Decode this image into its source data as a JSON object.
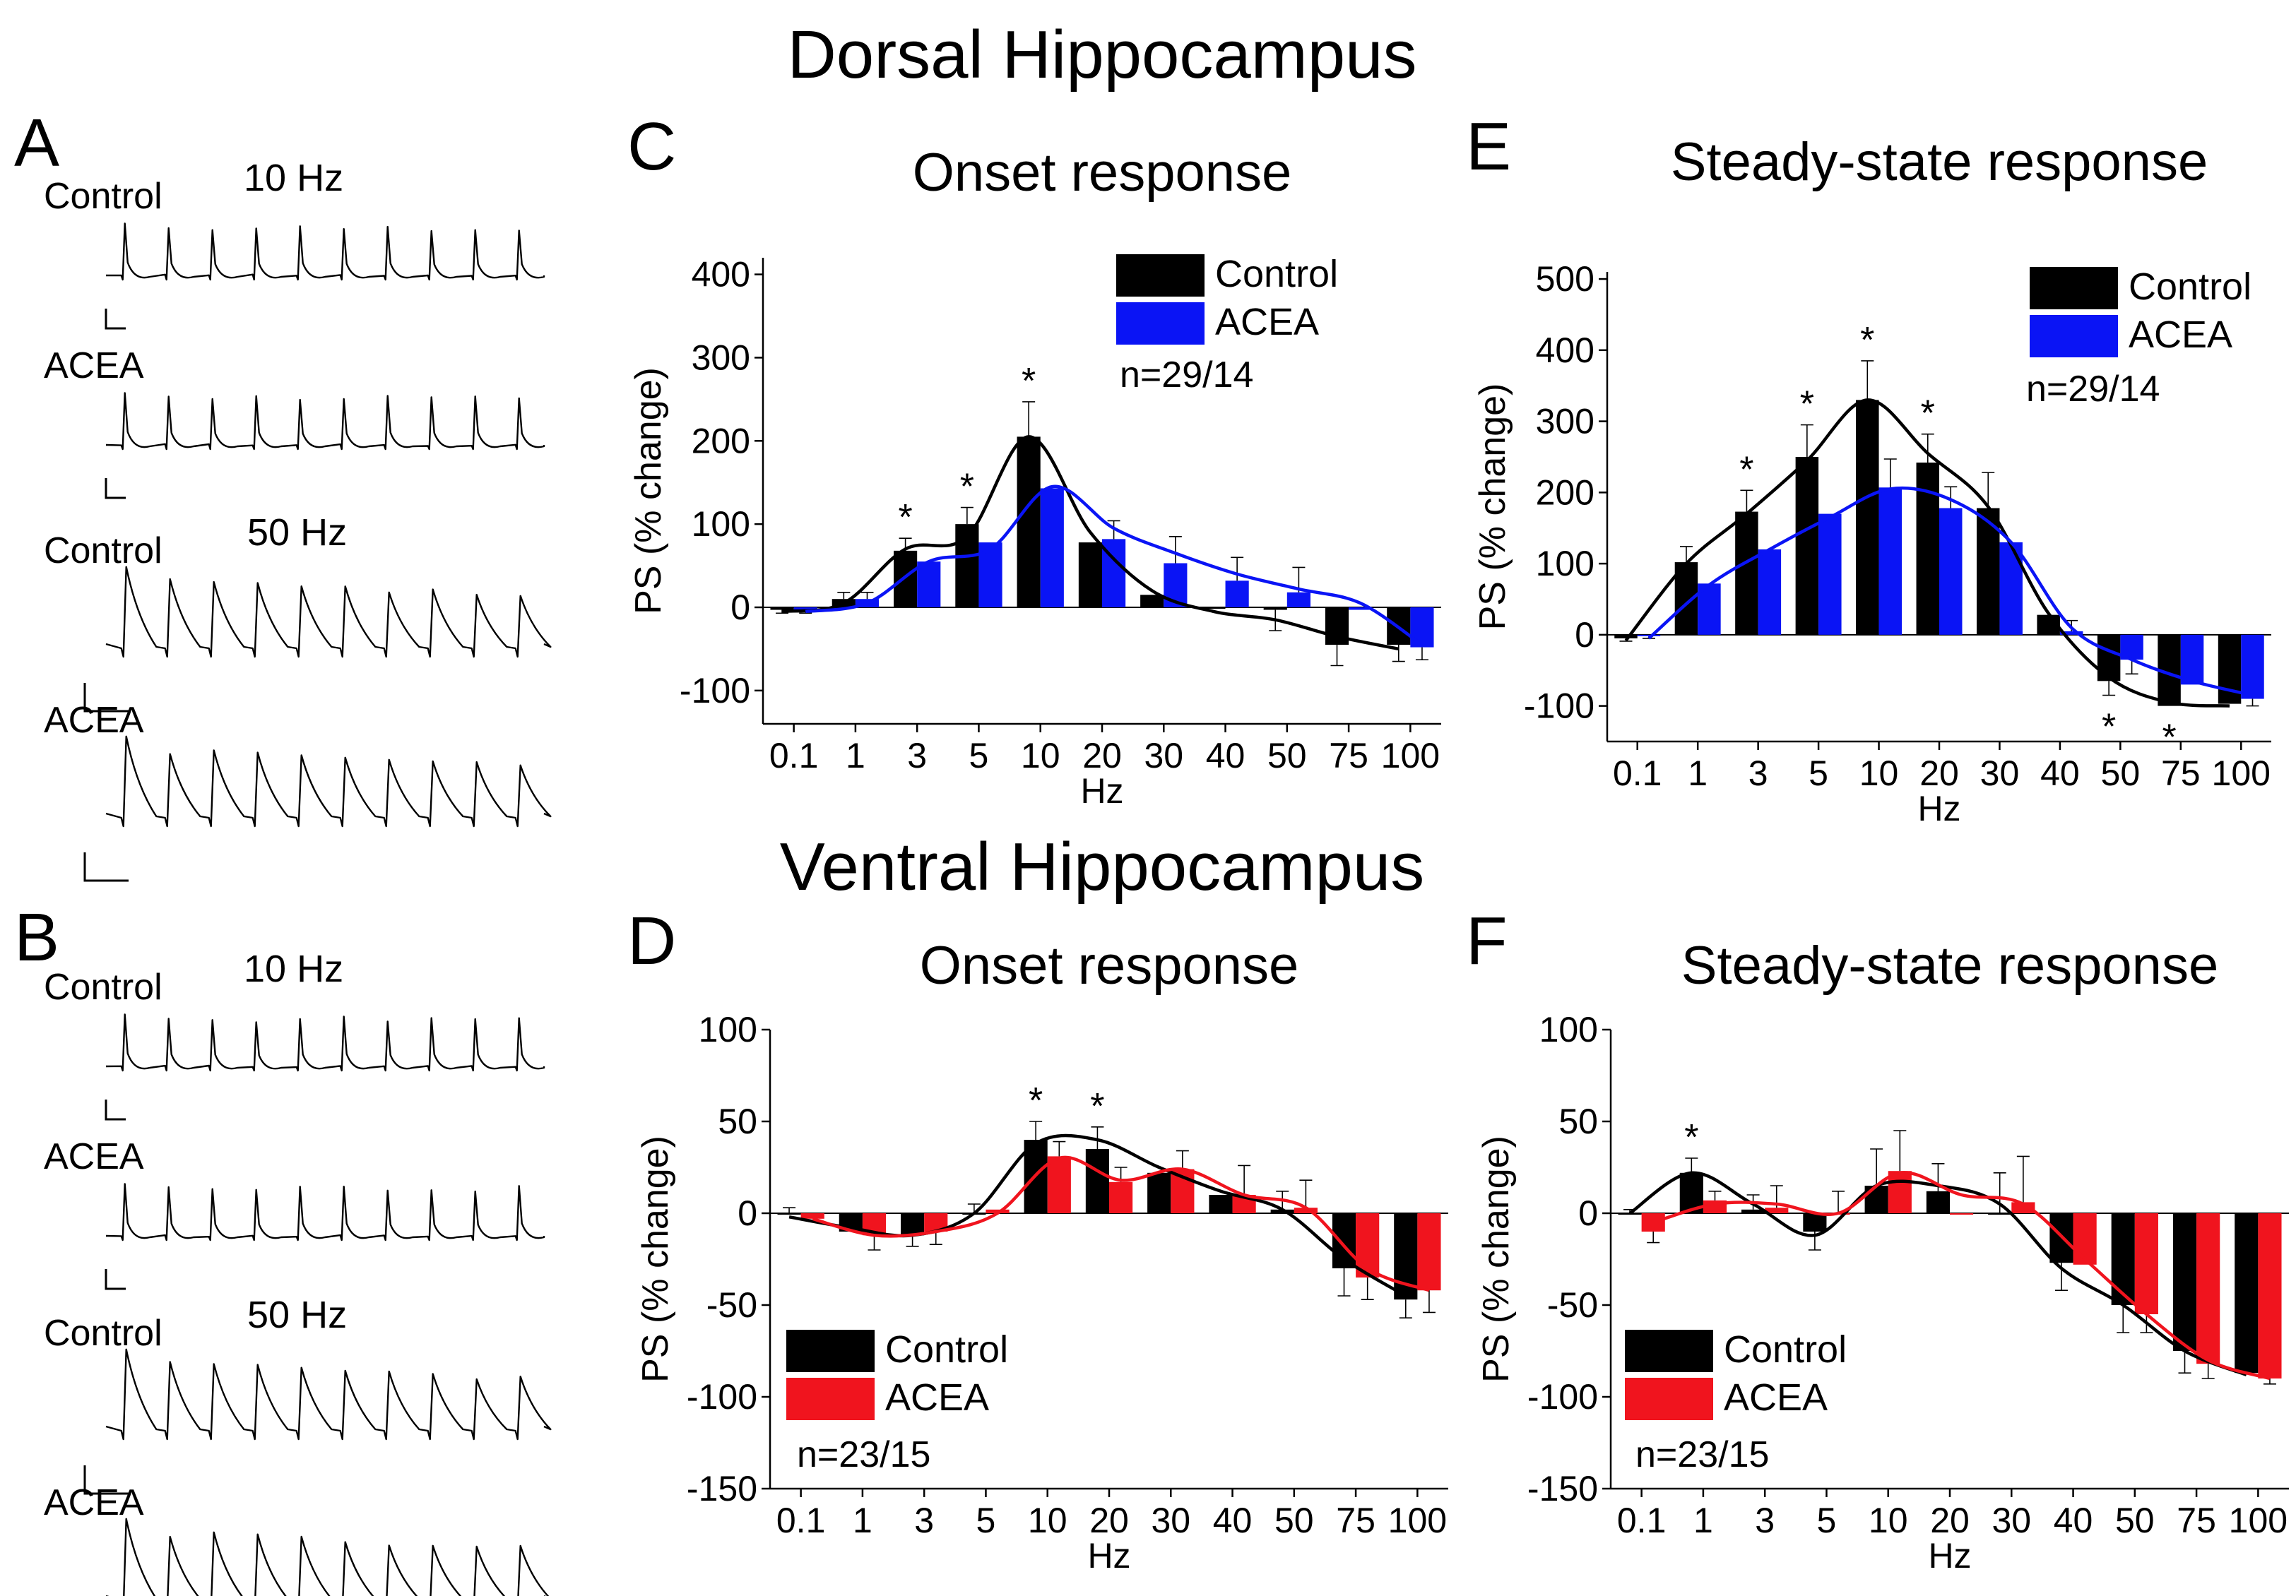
{
  "titles": {
    "dorsal": "Dorsal Hippocampus",
    "ventral": "Ventral Hippocampus"
  },
  "traces": {
    "A": {
      "letter": "A",
      "groups": [
        {
          "freq": "10 Hz",
          "rows": [
            {
              "label": "Control",
              "rate": 10,
              "kind": "sharp"
            },
            {
              "label": "ACEA",
              "rate": 10,
              "kind": "sharp"
            }
          ]
        },
        {
          "freq": "50 Hz",
          "rows": [
            {
              "label": "Control",
              "rate": 50,
              "kind": "decay"
            },
            {
              "label": "ACEA",
              "rate": 50,
              "kind": "decay"
            }
          ]
        }
      ]
    },
    "B": {
      "letter": "B",
      "groups": [
        {
          "freq": "10 Hz",
          "rows": [
            {
              "label": "Control",
              "rate": 10,
              "kind": "sharp"
            },
            {
              "label": "ACEA",
              "rate": 10,
              "kind": "sharp"
            }
          ]
        },
        {
          "freq": "50 Hz",
          "rows": [
            {
              "label": "Control",
              "rate": 50,
              "kind": "decay"
            },
            {
              "label": "ACEA",
              "rate": 50,
              "kind": "decay"
            }
          ]
        }
      ]
    }
  },
  "colors": {
    "control": "#000000",
    "acea_dorsal": "#0a14f5",
    "acea_ventral": "#f0141e"
  },
  "chart_data": [
    {
      "panel": "C",
      "type": "bar",
      "title": "Onset response",
      "xlabel": "Hz",
      "ylabel": "PS (% change)",
      "ylim": [
        -140,
        420
      ],
      "yticks": [
        -100,
        0,
        100,
        200,
        300,
        400
      ],
      "categories": [
        "0.1",
        "1",
        "3",
        "5",
        "10",
        "20",
        "30",
        "40",
        "50",
        "75",
        "100"
      ],
      "series": [
        {
          "name": "Control",
          "values": [
            -3,
            10,
            68,
            100,
            205,
            78,
            15,
            0,
            -3,
            -45,
            -45
          ],
          "errors": [
            4,
            8,
            15,
            20,
            42,
            0,
            0,
            0,
            25,
            25,
            20
          ]
        },
        {
          "name": "ACEA",
          "values": [
            -3,
            10,
            55,
            78,
            143,
            82,
            53,
            32,
            18,
            -3,
            -48
          ],
          "errors": [
            4,
            8,
            0,
            0,
            0,
            22,
            32,
            28,
            30,
            0,
            15
          ]
        }
      ],
      "fit_control": [
        -5,
        5,
        70,
        85,
        205,
        90,
        20,
        -5,
        -15,
        -35,
        -50
      ],
      "fit_acea": [
        -5,
        5,
        55,
        70,
        145,
        95,
        65,
        40,
        22,
        5,
        -45
      ],
      "significance": [
        "",
        "",
        "*",
        "*",
        "*",
        "",
        "",
        "",
        "",
        "",
        ""
      ],
      "legend": [
        "Control",
        "ACEA"
      ],
      "annotation": "n=29/14"
    },
    {
      "panel": "E",
      "type": "bar",
      "title": "Steady-state response",
      "xlabel": "Hz",
      "ylabel": "PS (% change)",
      "ylim": [
        -150,
        510
      ],
      "yticks": [
        -100,
        0,
        100,
        200,
        300,
        400,
        500
      ],
      "categories": [
        "0.1",
        "1",
        "3",
        "5",
        "10",
        "20",
        "30",
        "40",
        "50",
        "75",
        "100"
      ],
      "series": [
        {
          "name": "Control",
          "values": [
            -5,
            102,
            173,
            250,
            330,
            242,
            178,
            28,
            -65,
            -100,
            -97
          ],
          "errors": [
            4,
            22,
            30,
            45,
            55,
            40,
            50,
            0,
            20,
            0,
            0
          ]
        },
        {
          "name": "ACEA",
          "values": [
            -2,
            72,
            120,
            170,
            207,
            178,
            130,
            5,
            -35,
            -70,
            -90
          ],
          "errors": [
            3,
            0,
            0,
            0,
            40,
            30,
            0,
            15,
            20,
            0,
            10
          ]
        }
      ],
      "fit_control": [
        -8,
        100,
        170,
        245,
        330,
        255,
        180,
        30,
        -60,
        -95,
        -100
      ],
      "fit_acea": [
        -5,
        70,
        120,
        165,
        205,
        190,
        130,
        10,
        -35,
        -65,
        -85
      ],
      "significance": [
        "",
        "",
        "*",
        "*",
        "*",
        "*",
        "",
        "",
        "*",
        "*",
        ""
      ],
      "sig_below": [
        false,
        false,
        false,
        false,
        false,
        false,
        false,
        false,
        true,
        true,
        false
      ],
      "legend": [
        "Control",
        "ACEA"
      ],
      "annotation": "n=29/14"
    },
    {
      "panel": "D",
      "type": "bar",
      "title": "Onset response",
      "xlabel": "Hz",
      "ylabel": "PS (% change)",
      "ylim": [
        -150,
        100
      ],
      "yticks": [
        -150,
        -100,
        -50,
        0,
        50,
        100
      ],
      "categories": [
        "0.1",
        "1",
        "3",
        "5",
        "10",
        "20",
        "30",
        "40",
        "50",
        "75",
        "100"
      ],
      "series": [
        {
          "name": "Control",
          "values": [
            0,
            -10,
            -12,
            0,
            40,
            35,
            22,
            10,
            2,
            -30,
            -47
          ],
          "errors": [
            3,
            0,
            6,
            5,
            10,
            12,
            0,
            0,
            10,
            15,
            10
          ]
        },
        {
          "name": "ACEA",
          "values": [
            -3,
            -12,
            -10,
            2,
            31,
            17,
            24,
            10,
            3,
            -35,
            -42
          ],
          "errors": [
            0,
            8,
            7,
            0,
            8,
            8,
            10,
            16,
            15,
            12,
            12
          ]
        }
      ],
      "fit_control": [
        -2,
        -8,
        -12,
        0,
        38,
        40,
        25,
        12,
        2,
        -25,
        -45
      ],
      "fit_acea": [
        -3,
        -12,
        -10,
        0,
        30,
        18,
        24,
        10,
        3,
        -30,
        -42
      ],
      "significance": [
        "",
        "",
        "",
        "",
        "*",
        "*",
        "",
        "",
        "",
        "",
        ""
      ],
      "legend": [
        "Control",
        "ACEA"
      ],
      "annotation": "n=23/15"
    },
    {
      "panel": "F",
      "type": "bar",
      "title": "Steady-state response",
      "xlabel": "Hz",
      "ylabel": "PS (% change)",
      "ylim": [
        -150,
        100
      ],
      "yticks": [
        -150,
        -100,
        -50,
        0,
        50,
        100
      ],
      "categories": [
        "0.1",
        "1",
        "3",
        "5",
        "10",
        "20",
        "30",
        "40",
        "50",
        "75",
        "100"
      ],
      "series": [
        {
          "name": "Control",
          "values": [
            0,
            22,
            2,
            -10,
            15,
            12,
            0,
            -27,
            -50,
            -75,
            -87
          ],
          "errors": [
            2,
            8,
            8,
            10,
            20,
            15,
            22,
            15,
            15,
            12,
            0
          ]
        },
        {
          "name": "ACEA",
          "values": [
            -10,
            7,
            3,
            0,
            23,
            0,
            6,
            -28,
            -55,
            -82,
            -90
          ],
          "errors": [
            6,
            5,
            12,
            12,
            22,
            0,
            25,
            0,
            10,
            8,
            3
          ]
        }
      ],
      "fit_control": [
        0,
        22,
        5,
        -12,
        15,
        15,
        5,
        -30,
        -50,
        -75,
        -88
      ],
      "fit_acea": [
        -5,
        5,
        5,
        0,
        22,
        10,
        5,
        -25,
        -55,
        -80,
        -90
      ],
      "significance": [
        "",
        "*",
        "",
        "",
        "",
        "",
        "",
        "",
        "",
        "",
        ""
      ],
      "legend": [
        "Control",
        "ACEA"
      ],
      "annotation": "n=23/15"
    }
  ]
}
